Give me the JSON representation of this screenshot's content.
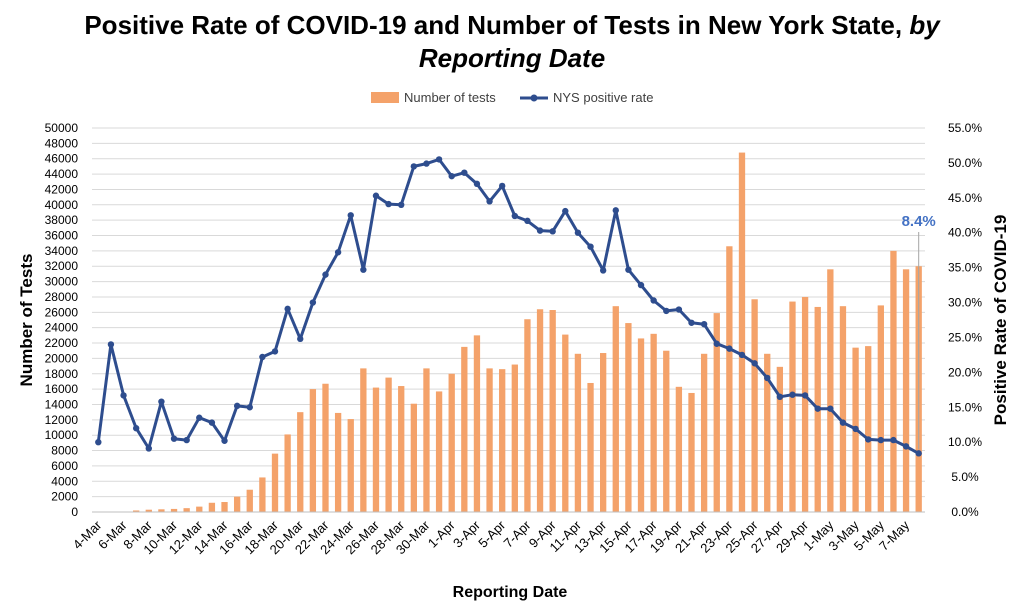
{
  "chart_data": {
    "type": "bar+line",
    "title_main": "Positive Rate of COVID-19 and Number of Tests in New York State, ",
    "title_italic_1": "by",
    "title_italic_2": "Reporting Date",
    "xlabel": "Reporting Date",
    "ylabel_left": "Number of Tests",
    "ylabel_right": "Positive Rate of COVID-19",
    "legend": {
      "bars": "Number of tests",
      "line": "NYS positive rate",
      "placement": "top-center"
    },
    "y_left": {
      "min": 0,
      "max": 50000,
      "step": 2000
    },
    "y_right": {
      "min": 0,
      "max": 55,
      "step": 5,
      "suffix": "%"
    },
    "annotation": "8.4%",
    "colors": {
      "bars": "#F4A26A",
      "line": "#2E4D8E",
      "annotation": "#4472C4",
      "grid": "#D9D9D9"
    },
    "x_tick_labels": [
      "4-Mar",
      "6-Mar",
      "8-Mar",
      "10-Mar",
      "12-Mar",
      "14-Mar",
      "16-Mar",
      "18-Mar",
      "20-Mar",
      "22-Mar",
      "24-Mar",
      "26-Mar",
      "28-Mar",
      "30-Mar",
      "1-Apr",
      "3-Apr",
      "5-Apr",
      "7-Apr",
      "9-Apr",
      "11-Apr",
      "13-Apr",
      "15-Apr",
      "17-Apr",
      "19-Apr",
      "21-Apr",
      "23-Apr",
      "25-Apr",
      "27-Apr",
      "29-Apr",
      "1-May",
      "3-May",
      "5-May",
      "7-May"
    ],
    "series": [
      {
        "name": "Number of tests",
        "kind": "bar",
        "values": [
          0,
          0,
          0,
          200,
          300,
          350,
          400,
          500,
          700,
          1200,
          1300,
          2000,
          2900,
          4500,
          7600,
          10100,
          13000,
          16000,
          16700,
          12900,
          12100,
          18700,
          16200,
          17500,
          16400,
          14100,
          18700,
          15700,
          18000,
          21500,
          23000,
          18700,
          18600,
          19200,
          25100,
          26400,
          26300,
          23100,
          20600,
          16800,
          20700,
          26800,
          24600,
          22600,
          23200,
          21000,
          16300,
          15500,
          20600,
          25900,
          34600,
          46800,
          27700,
          20600,
          18900,
          27400,
          28000,
          26700,
          31600,
          26800,
          21400,
          21600,
          26900,
          34000,
          31600,
          32000
        ]
      },
      {
        "name": "NYS positive rate",
        "kind": "line",
        "values": [
          10.0,
          24.0,
          16.7,
          12.0,
          9.1,
          15.8,
          10.5,
          10.3,
          13.5,
          12.8,
          10.2,
          15.2,
          15.0,
          22.2,
          23.0,
          29.1,
          24.8,
          30.0,
          34.0,
          37.2,
          42.5,
          34.7,
          45.3,
          44.1,
          44.0,
          49.5,
          49.9,
          50.5,
          48.1,
          48.6,
          47.0,
          44.5,
          46.7,
          42.4,
          41.7,
          40.3,
          40.2,
          43.1,
          40.0,
          38.0,
          34.6,
          43.2,
          34.7,
          32.5,
          30.3,
          28.8,
          29.0,
          27.1,
          26.9,
          24.1,
          23.4,
          22.5,
          21.3,
          19.2,
          16.5,
          16.8,
          16.7,
          14.8,
          14.8,
          12.8,
          11.9,
          10.4,
          10.3,
          10.3,
          9.4,
          8.4
        ]
      }
    ]
  }
}
